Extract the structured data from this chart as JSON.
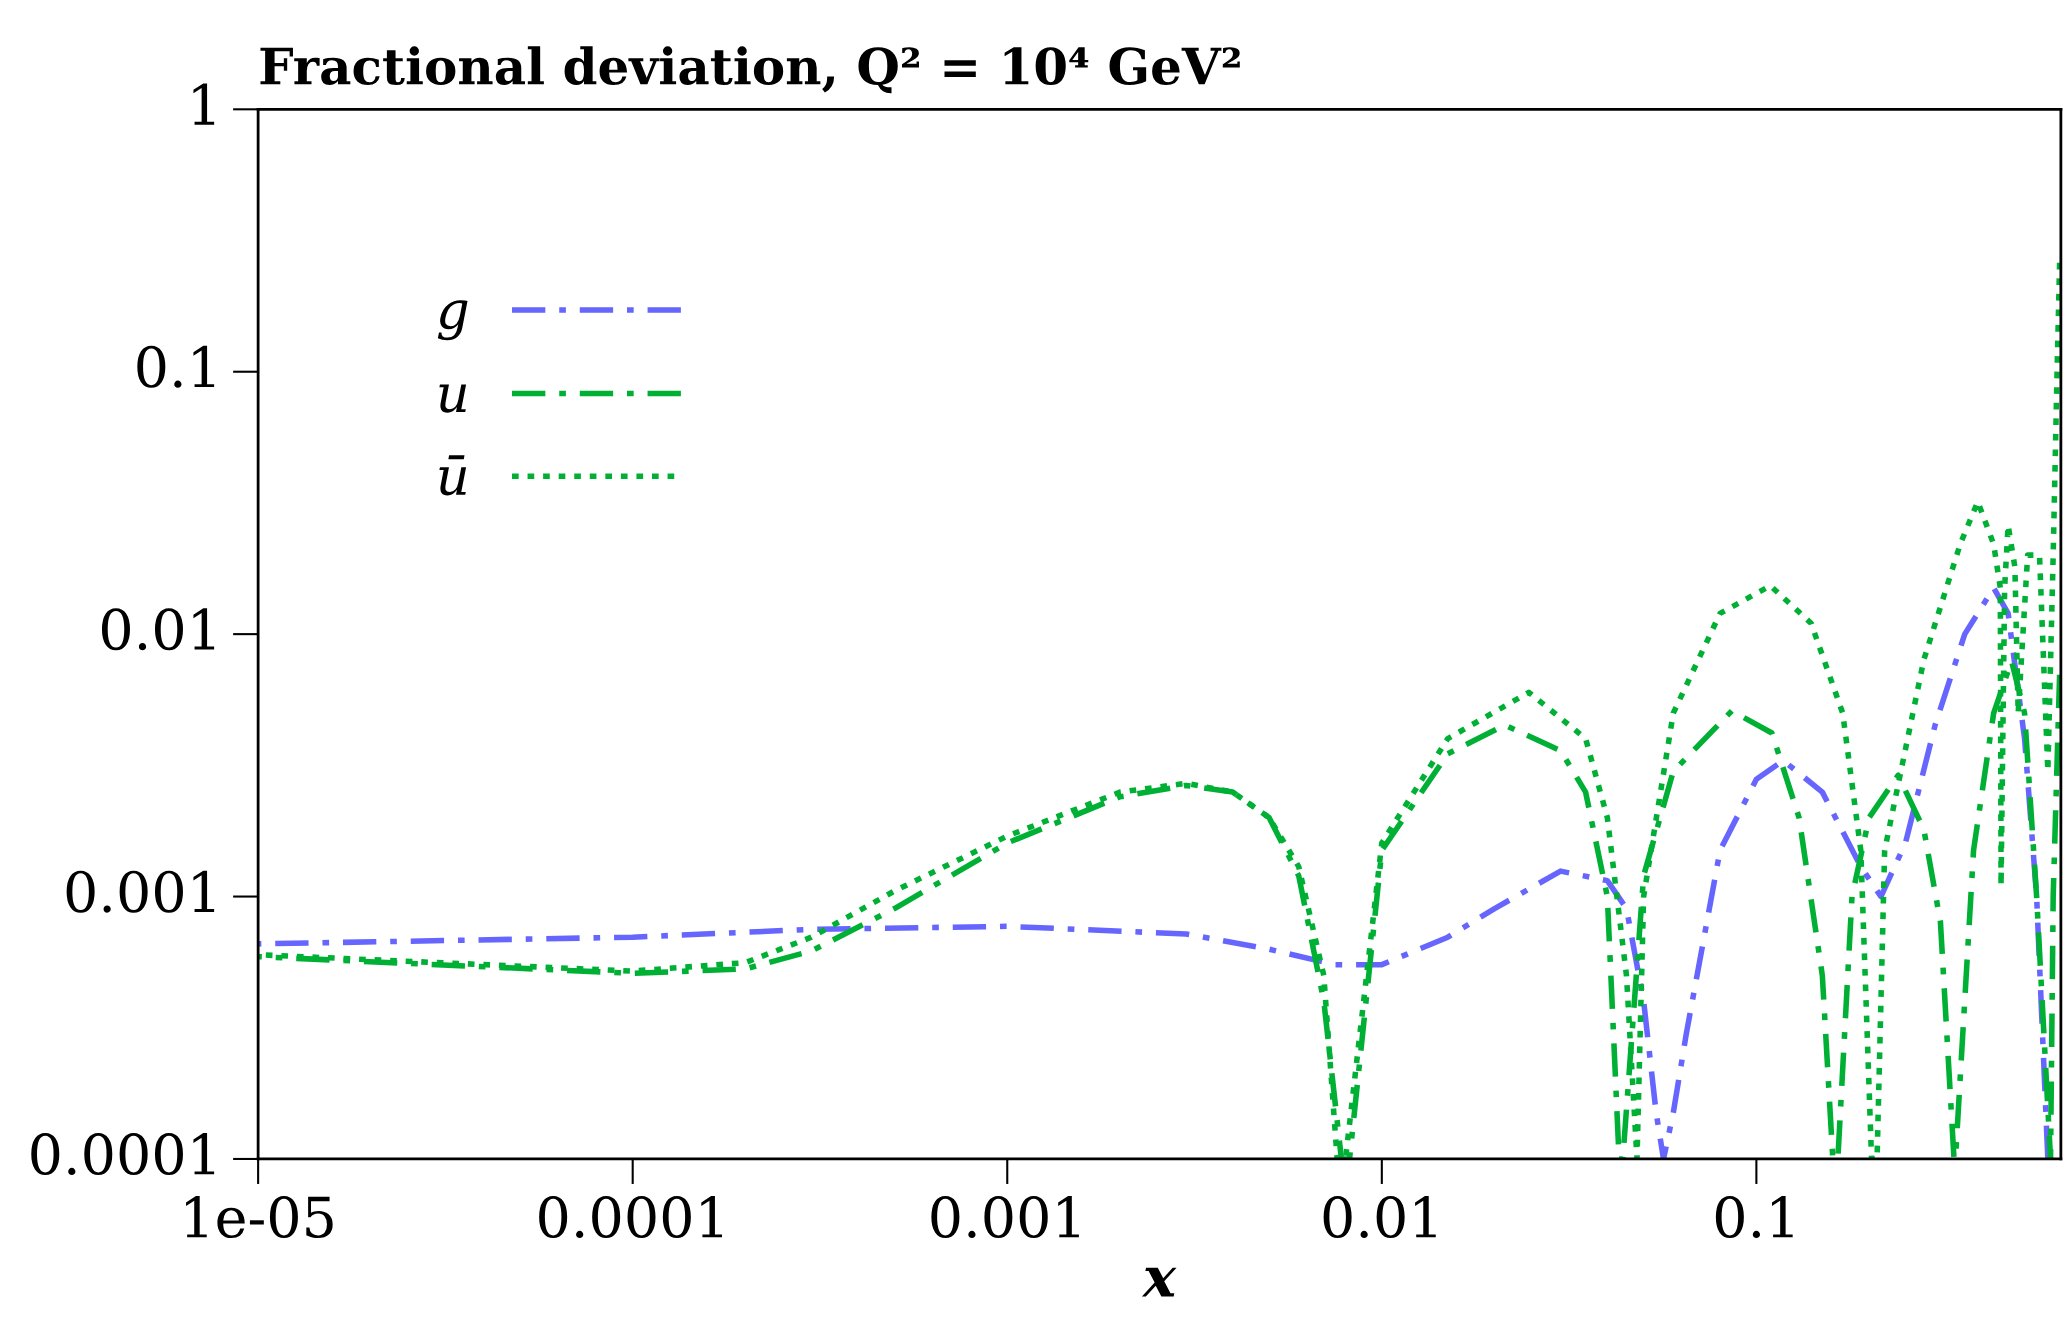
{
  "chart_data": {
    "type": "line",
    "title": "Fractional deviation, Q² = 10⁴ GeV²",
    "xlabel": "x",
    "log": "xy",
    "xlim": [
      1e-05,
      0.65
    ],
    "ylim": [
      0.0001,
      1
    ],
    "xticks": [
      {
        "value": 1e-05,
        "label": "1e-05"
      },
      0.0001,
      0.001,
      0.01,
      0.1
    ],
    "yticks": [
      0.0001,
      0.001,
      0.01,
      0.1,
      1
    ],
    "grid": false,
    "legend": "top left",
    "series": [
      {
        "name": "g",
        "color": "#6666ff",
        "line_style": "dashdot",
        "x": [
          1e-05,
          0.0001,
          0.0003,
          0.001,
          0.003,
          0.005,
          0.0075,
          0.01,
          0.015,
          0.02,
          0.03,
          0.04,
          0.045,
          0.05,
          0.054,
          0.0565,
          0.06,
          0.065,
          0.08,
          0.1,
          0.118,
          0.15,
          0.19,
          0.215,
          0.25,
          0.3,
          0.36,
          0.43,
          0.47,
          0.52,
          0.56,
          0.6
        ],
        "values": [
          0.00066,
          0.0007,
          0.00075,
          0.00077,
          0.00072,
          0.00063,
          0.00055,
          0.00055,
          0.0007,
          0.0009,
          0.00125,
          0.00115,
          0.0009,
          0.0004,
          0.00015,
          0.0001,
          0.00015,
          0.0003,
          0.0015,
          0.0028,
          0.0033,
          0.0025,
          0.0013,
          0.001,
          0.0016,
          0.0045,
          0.01,
          0.015,
          0.012,
          0.004,
          0.001,
          0.0001
        ]
      },
      {
        "name": "u",
        "color": "#00b035",
        "line_style": "dashdot",
        "x": [
          1e-05,
          3e-05,
          0.0001,
          0.0002,
          0.0003,
          0.0005,
          0.001,
          0.002,
          0.003,
          0.004,
          0.005,
          0.006,
          0.007,
          0.0078,
          0.0082,
          0.01,
          0.015,
          0.0213,
          0.03,
          0.035,
          0.04,
          0.043,
          0.044,
          0.05,
          0.06,
          0.086,
          0.11,
          0.13,
          0.15,
          0.16,
          0.165,
          0.18,
          0.2,
          0.239,
          0.28,
          0.31,
          0.337,
          0.34,
          0.38,
          0.43,
          0.48,
          0.52,
          0.56,
          0.61,
          0.62,
          0.645
        ],
        "values": [
          0.00059,
          0.00055,
          0.00051,
          0.00053,
          0.00062,
          0.0009,
          0.0016,
          0.0024,
          0.00265,
          0.0025,
          0.002,
          0.0012,
          0.0004,
          0.0001,
          0.0001,
          0.0015,
          0.0035,
          0.0045,
          0.0036,
          0.0025,
          0.001,
          0.0001,
          0.0001,
          0.0012,
          0.003,
          0.0051,
          0.0042,
          0.002,
          0.0005,
          0.0001,
          0.0001,
          0.001,
          0.002,
          0.0029,
          0.0018,
          0.0008,
          0.0001,
          0.0001,
          0.0015,
          0.005,
          0.0079,
          0.005,
          0.001,
          0.0001,
          0.001,
          0.007
        ]
      },
      {
        "name": "ū",
        "color": "#00b035",
        "line_style": "dotted",
        "x": [
          1e-05,
          0.0001,
          0.0002,
          0.0003,
          0.0005,
          0.001,
          0.002,
          0.003,
          0.004,
          0.005,
          0.006,
          0.007,
          0.0076,
          0.008,
          0.01,
          0.015,
          0.0247,
          0.035,
          0.04,
          0.045,
          0.048,
          0.05,
          0.06,
          0.08,
          0.109,
          0.14,
          0.17,
          0.19,
          0.203,
          0.21,
          0.22,
          0.28,
          0.35,
          0.39,
          0.43,
          0.448,
          0.45,
          0.46,
          0.47,
          0.49,
          0.5,
          0.53,
          0.57,
          0.6,
          0.62,
          0.635,
          0.645
        ],
        "values": [
          0.0006,
          0.00052,
          0.00056,
          0.0007,
          0.00105,
          0.0017,
          0.0025,
          0.0027,
          0.0025,
          0.002,
          0.0013,
          0.0005,
          0.0001,
          0.0001,
          0.0016,
          0.004,
          0.006,
          0.004,
          0.002,
          0.0005,
          0.0001,
          0.001,
          0.005,
          0.012,
          0.0153,
          0.011,
          0.005,
          0.0015,
          0.0001,
          0.0001,
          0.0015,
          0.008,
          0.022,
          0.032,
          0.022,
          0.015,
          0.0011,
          0.015,
          0.026,
          0.018,
          0.005,
          0.02,
          0.02,
          0.003,
          0.02,
          0.1,
          0.26
        ]
      }
    ]
  }
}
